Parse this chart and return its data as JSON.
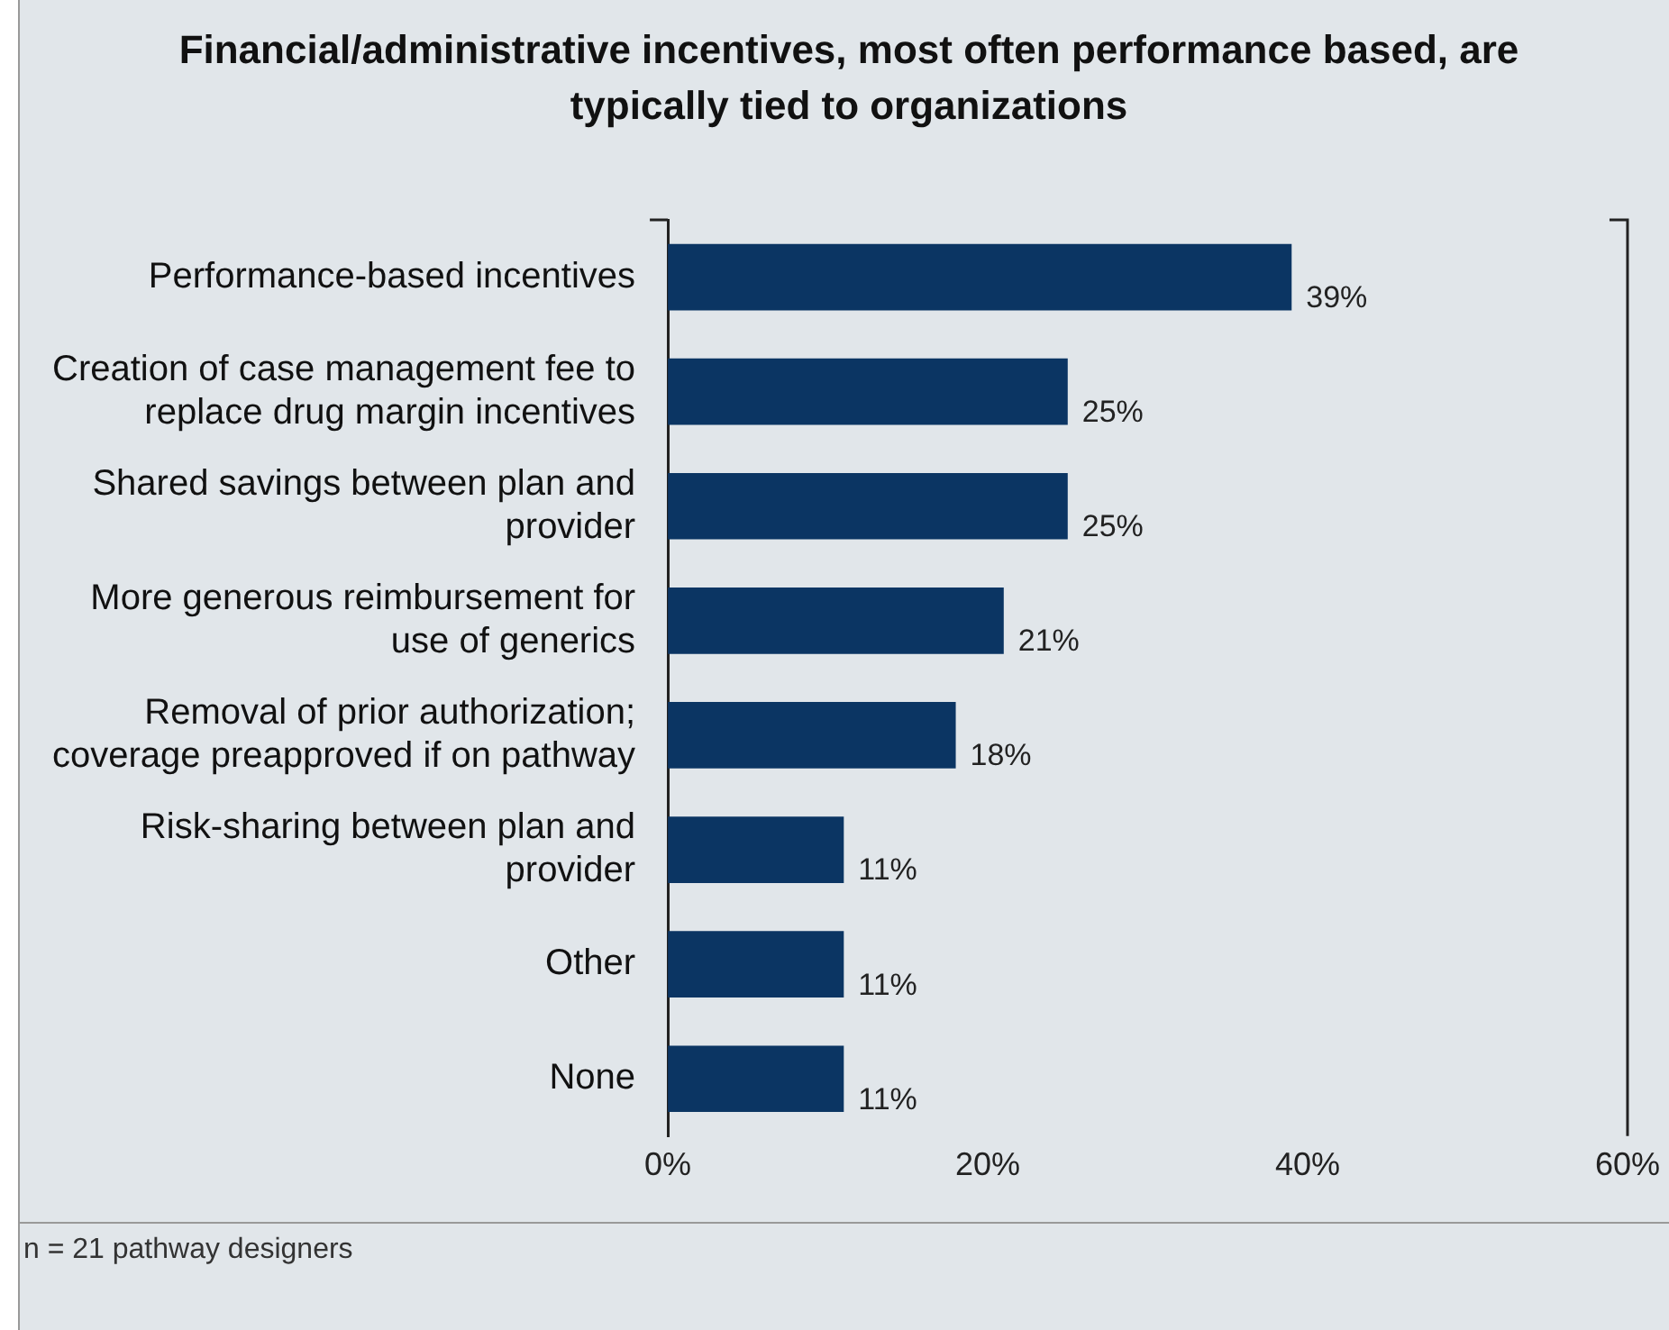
{
  "chart_data": {
    "type": "bar",
    "orientation": "horizontal",
    "title": "Financial/administrative incentives, most often performance based, are typically tied to organizations",
    "categories": [
      "Performance-based incentives",
      "Creation of case management fee to replace drug margin incentives",
      "Shared savings between plan and provider",
      "More generous reimbursement for use of generics",
      "Removal of prior authorization; coverage preapproved if on pathway",
      "Risk-sharing between plan and provider",
      "Other",
      "None"
    ],
    "values": [
      39,
      25,
      25,
      21,
      18,
      11,
      11,
      11
    ],
    "color": "#0b3563",
    "value_labels": [
      "39%",
      "25%",
      "25%",
      "21%",
      "18%",
      "11%",
      "11%",
      "11%"
    ],
    "xlim": [
      0,
      60
    ],
    "xticks": [
      {
        "value": 0,
        "label": "0%"
      },
      {
        "value": 20,
        "label": "20%"
      },
      {
        "value": 40,
        "label": "40%"
      },
      {
        "value": 60,
        "label": "60%"
      }
    ],
    "grid": false,
    "legend": false,
    "annotations": [
      "n = 21 pathway designers"
    ]
  }
}
